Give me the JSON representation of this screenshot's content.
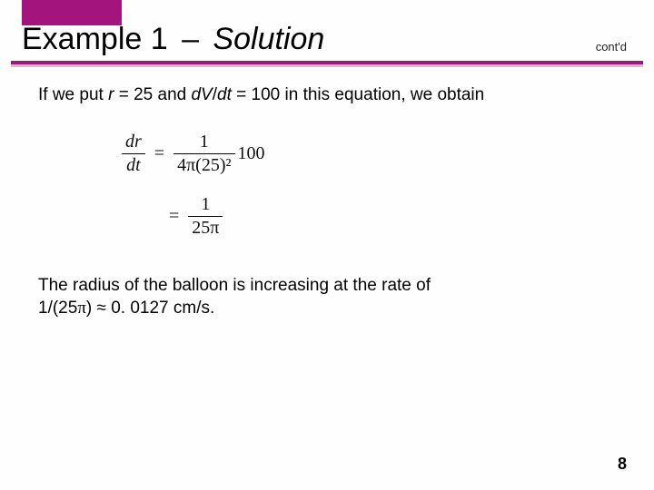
{
  "accent_color": "#a3157c",
  "title": {
    "prefix": "Example 1",
    "dash": "–",
    "suffix": "Solution",
    "contd": "cont'd"
  },
  "body": {
    "intro_pre": "If we put ",
    "intro_r": "r",
    "intro_mid1": " = 25 and ",
    "intro_dv": "dV",
    "intro_slash": "/",
    "intro_dt": "dt",
    "intro_mid2": " = 100 in this equation, we obtain",
    "eq1": {
      "lhs_num_d": "d",
      "lhs_num_r": "r",
      "lhs_den_d": "d",
      "lhs_den_t": "t",
      "rhs_num": "1",
      "rhs_den": "4π(25)²",
      "trail": "100"
    },
    "eq2": {
      "rhs_num": "1",
      "rhs_den": "25π"
    },
    "concl_l1": "The radius of the balloon is increasing at the rate of",
    "concl_l2_a": "1/(25",
    "concl_l2_pi": "π",
    "concl_l2_b": ") ",
    "concl_approx": "≈",
    "concl_l2_c": " 0. 0127 cm/s."
  },
  "page_number": "8"
}
